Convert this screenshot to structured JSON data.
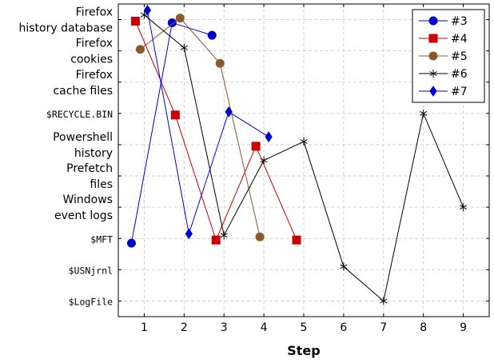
{
  "chart_data": {
    "type": "line",
    "xlabel": "Step",
    "ylabel": "",
    "x_ticks": [
      1,
      2,
      3,
      4,
      5,
      6,
      7,
      8,
      9
    ],
    "xlim": [
      0.35,
      9.65
    ],
    "y_categories": [
      {
        "label": "$LogFile",
        "style": "mono"
      },
      {
        "label": "$USNjrnl",
        "style": "mono"
      },
      {
        "label": "$MFT",
        "style": "mono"
      },
      {
        "label": "Windows\nevent logs",
        "style": "sans"
      },
      {
        "label": "Prefetch\nfiles",
        "style": "sans"
      },
      {
        "label": "Powershell\nhistory",
        "style": "sans"
      },
      {
        "label": "$RECYCLE.BIN",
        "style": "mono"
      },
      {
        "label": "Firefox\ncache files",
        "style": "sans"
      },
      {
        "label": "Firefox\ncookies",
        "style": "sans"
      },
      {
        "label": "Firefox\nhistory database",
        "style": "sans"
      }
    ],
    "ylim": [
      -0.5,
      9.5
    ],
    "grid": true,
    "legend_position": "top-right",
    "series": [
      {
        "name": "#3",
        "color": "#0000cc",
        "marker": "circle",
        "points": [
          [
            0.68,
            1.85
          ],
          [
            1.7,
            8.9
          ],
          [
            2.7,
            8.5
          ]
        ]
      },
      {
        "name": "#4",
        "color": "#cc0000",
        "marker": "square",
        "points": [
          [
            0.78,
            8.95
          ],
          [
            1.78,
            5.95
          ],
          [
            2.8,
            1.95
          ],
          [
            3.8,
            4.95
          ],
          [
            4.82,
            1.95
          ]
        ]
      },
      {
        "name": "#5",
        "color": "#8b5a2b",
        "marker": "circle",
        "points": [
          [
            0.9,
            8.05
          ],
          [
            1.9,
            9.05
          ],
          [
            2.9,
            7.6
          ],
          [
            3.9,
            2.05
          ]
        ]
      },
      {
        "name": "#6",
        "color": "#000000",
        "marker": "star",
        "points": [
          [
            1.0,
            9.15
          ],
          [
            2.0,
            8.1
          ],
          [
            3.0,
            2.1
          ],
          [
            4.0,
            4.5
          ],
          [
            5.0,
            5.1
          ],
          [
            6.0,
            1.1
          ],
          [
            7.0,
            0.0
          ],
          [
            8.0,
            6.0
          ],
          [
            9.0,
            3.0
          ]
        ]
      },
      {
        "name": "#7",
        "color": "#0000cc",
        "marker": "diamond",
        "points": [
          [
            1.08,
            9.3
          ],
          [
            2.12,
            2.15
          ],
          [
            3.12,
            6.05
          ],
          [
            4.12,
            5.25
          ]
        ]
      }
    ]
  }
}
